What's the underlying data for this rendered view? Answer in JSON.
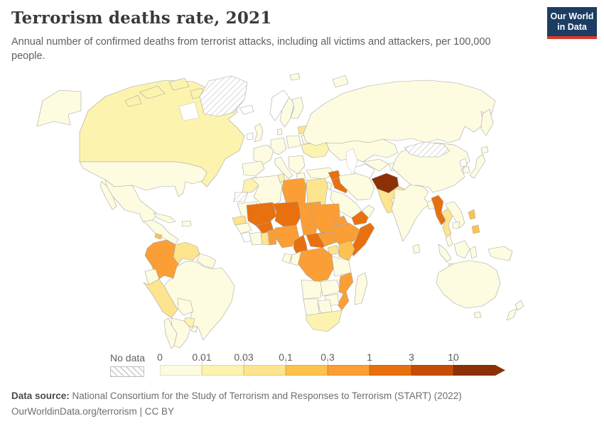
{
  "header": {
    "title": "Terrorism deaths rate, 2021",
    "subtitle": "Annual number of confirmed deaths from terrorist attacks, including all victims and attackers, per 100,000 people.",
    "logo": {
      "line1": "Our World",
      "line2": "in Data",
      "bg_color": "#1d3d63",
      "accent_color": "#dc382b"
    }
  },
  "legend": {
    "no_data_label": "No data",
    "tick_labels": [
      "0",
      "0.01",
      "0.03",
      "0.1",
      "0.3",
      "1",
      "3",
      "10"
    ],
    "bin_colors": [
      "#fdfce0",
      "#fcf3ae",
      "#fde48e",
      "#fcc24d",
      "#fa9e35",
      "#e8700f",
      "#c44e05",
      "#8c3106"
    ],
    "zero_color": "#ffffff"
  },
  "chart_data": {
    "type": "choropleth",
    "title": "Terrorism deaths rate, 2021",
    "unit": "annual confirmed deaths from terrorist attacks per 100,000 people",
    "year": 2021,
    "legend_bins": [
      "0–0.01",
      "0.01–0.03",
      "0.03–0.1",
      "0.1–0.3",
      "0.3–1",
      "1–3",
      "3–10",
      "10+"
    ],
    "country_bins": {
      "alaska": 0,
      "canada": 1,
      "arctic-island-1": 1,
      "arctic-island-2": 1,
      "arctic-island-3": 1,
      "arctic-island-4": 1,
      "greenland": "no-data",
      "usa": 0,
      "mexico": 0,
      "baja": 0,
      "central-america": 0,
      "el-salvador": 3,
      "cuba": 0,
      "hispaniola": 0,
      "colombia": 4,
      "venezuela": 2,
      "guyanas": 0,
      "ecuador": 0,
      "peru": 2,
      "brazil": 0,
      "bolivia": 0,
      "paraguay": 1,
      "argentina": 0,
      "chile": 0,
      "uruguay": 0,
      "iceland": "zero",
      "ireland": "zero",
      "uk": 0,
      "norway": "zero",
      "sweden": 0,
      "finland": 0,
      "latvia": 2,
      "denmark": 0,
      "germany": 0,
      "poland": 0,
      "france": 0,
      "spain": 0,
      "italy": 0,
      "balkans": 0,
      "greece": 0,
      "ukraine": 1,
      "belarus": 0,
      "turkey": 0,
      "russia": 0,
      "kamchatka": 0,
      "novaya-zemlya": 0,
      "svalbard": 0,
      "kazakhstan": 0,
      "turkmenistan": "zero",
      "uzbekistan": 0,
      "kyrgyzstan": 0,
      "iran": 0,
      "afghanistan": 7,
      "pakistan": 2,
      "syria": 5,
      "iraq": 5,
      "jordan": 0,
      "saudi-arabia": 0,
      "yemen": 5,
      "oman": 0,
      "india": 0,
      "sri-lanka": 0,
      "bangladesh": 0,
      "china": 0,
      "mongolia": "no-data",
      "north-korea": "zero",
      "south-korea": 0,
      "japan": 0,
      "hokkaido": 0,
      "myanmar": 5,
      "thailand": 2,
      "vietnam": 0,
      "cambodia": 0,
      "malaysia": 0,
      "philippines-luzon": 3,
      "philippines-mindanao": 3,
      "sumatra": 0,
      "java": 0,
      "borneo": 0,
      "sulawesi": 0,
      "new-guinea": 0,
      "australia": 0,
      "tasmania": 0,
      "new-zealand-north": 0,
      "new-zealand-south": 0,
      "morocco": 1,
      "western-sahara": "no-data",
      "algeria": 0,
      "tunisia": 1,
      "libya": 4,
      "egypt": 2,
      "mauritania": 0,
      "senegal": 2,
      "guinea": 0,
      "liberia": "zero",
      "mali": 5,
      "burkina-faso": 5,
      "ivory-coast": 0,
      "ghana": 2,
      "togo-benin": 4,
      "niger": 5,
      "nigeria": 4,
      "chad": 4,
      "cameroon": 5,
      "central-african-republic": 5,
      "sudan": 4,
      "eritrea": 4,
      "ethiopia": 4,
      "somalia": 5,
      "south-sudan": 4,
      "uganda": 2,
      "kenya": 3,
      "drc": 4,
      "congo": 0,
      "gabon": 0,
      "tanzania": 0,
      "angola": 0,
      "zambia": 0,
      "malawi": 1,
      "mozambique": 4,
      "zimbabwe": 0,
      "namibia": 0,
      "botswana": 0,
      "south-africa": 1,
      "madagascar": 0
    }
  },
  "footer": {
    "source_label": "Data source:",
    "source_text": "National Consortium for the Study of Terrorism and Responses to Terrorism (START) (2022)",
    "note": "OurWorldinData.org/terrorism | CC BY"
  }
}
